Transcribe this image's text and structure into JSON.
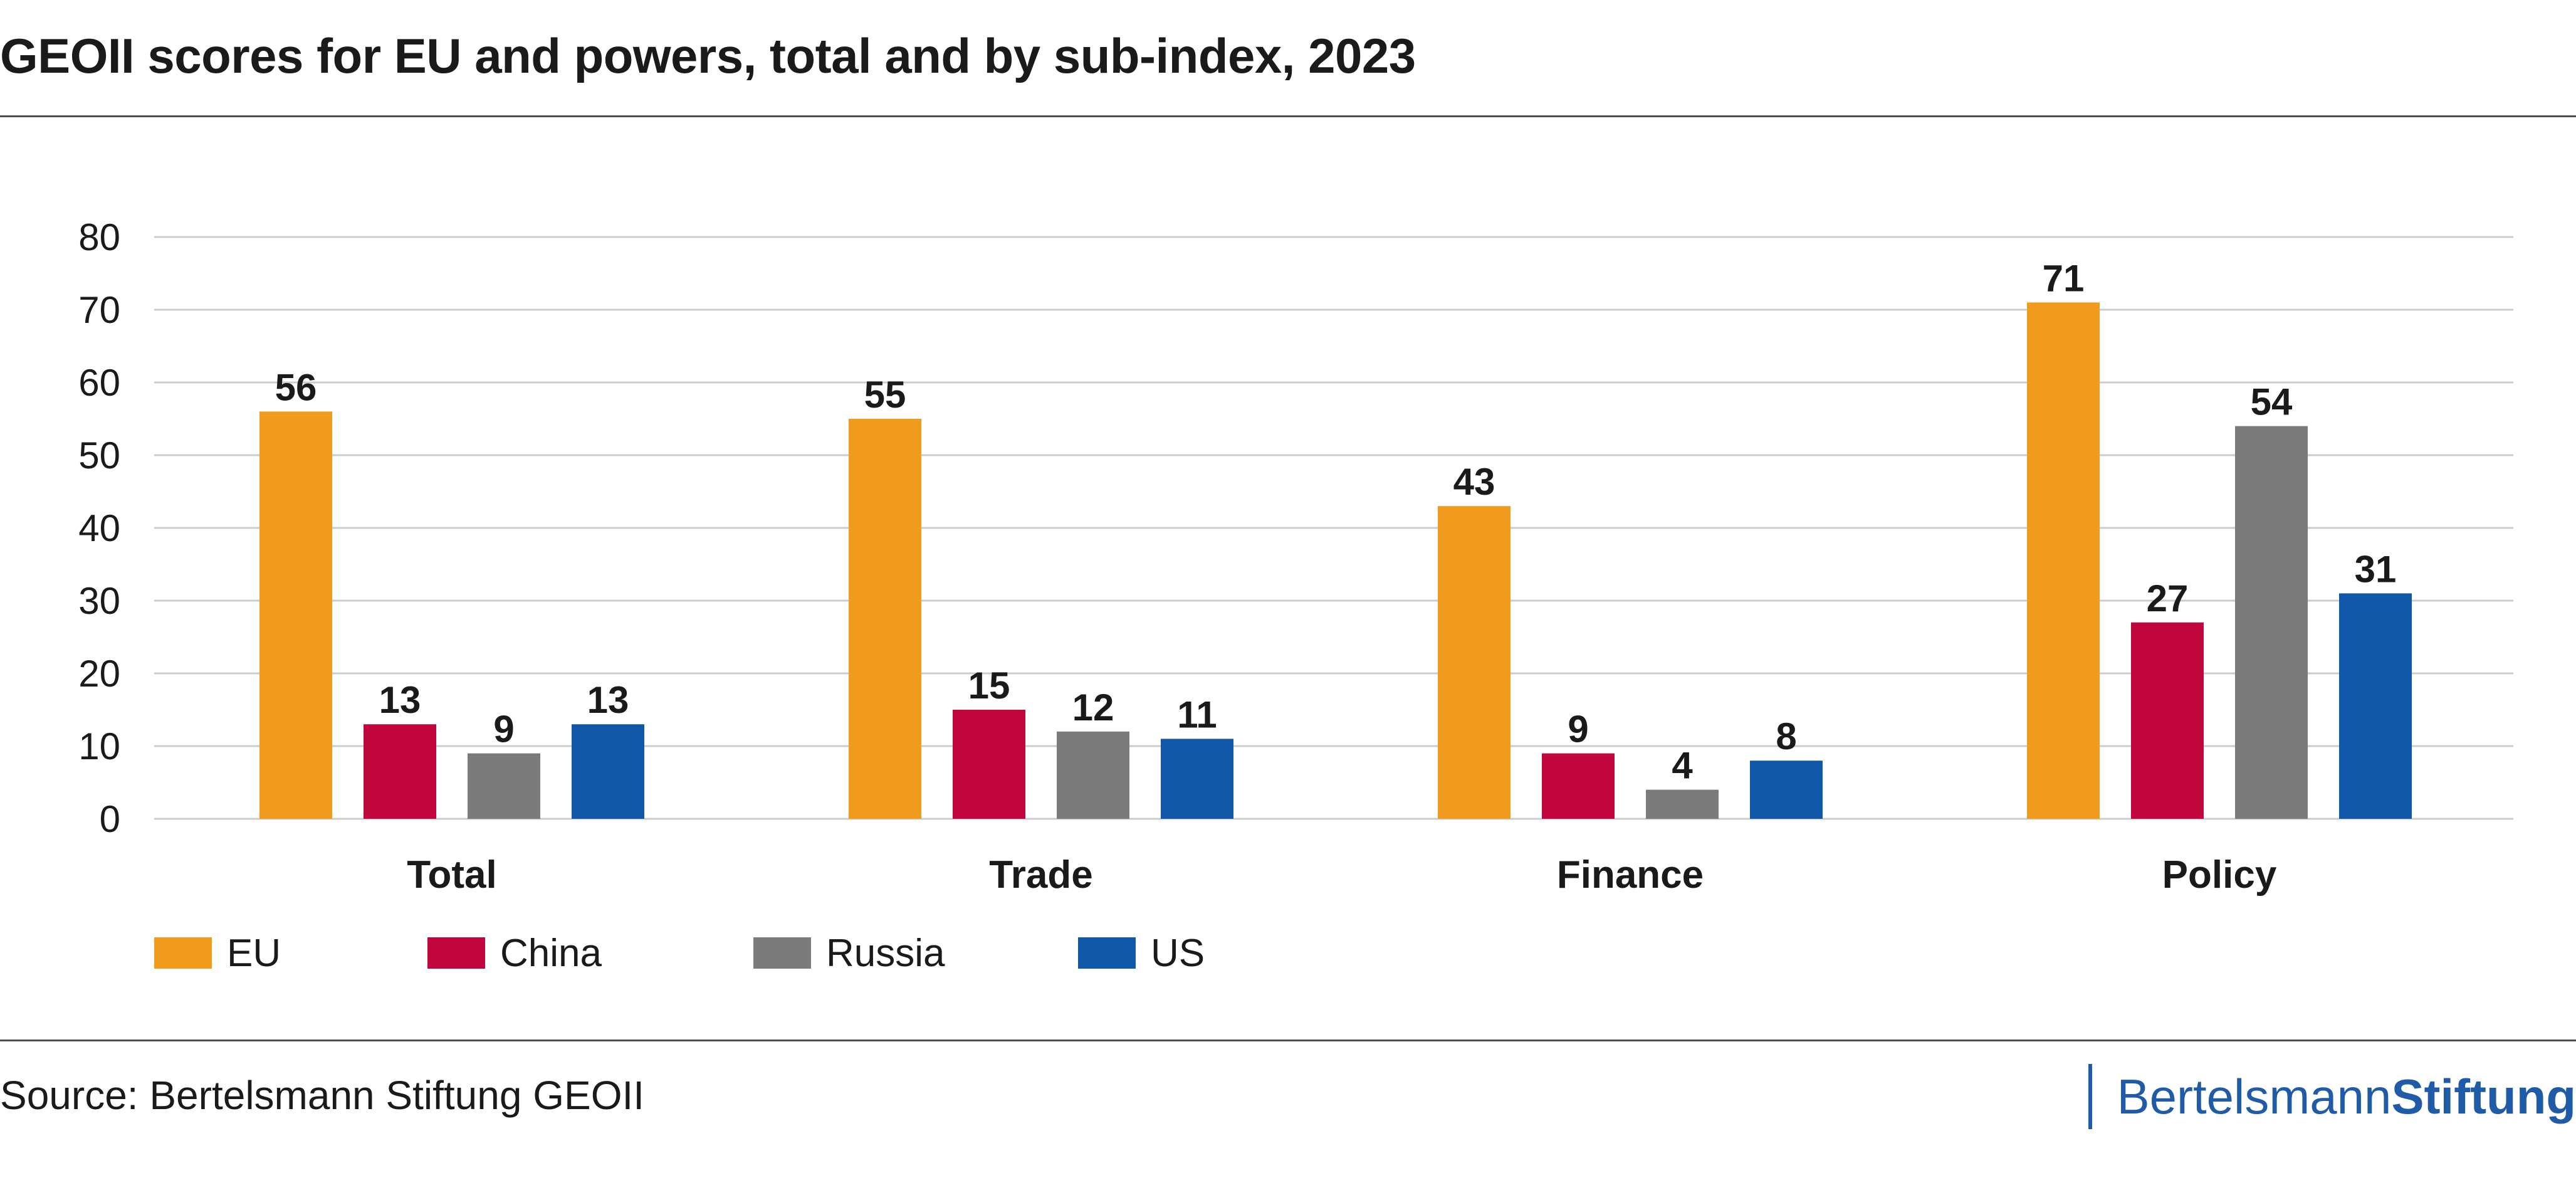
{
  "header": {
    "title": "GEOII scores for EU and powers, total and by sub-index, 2023"
  },
  "footer": {
    "source": "Source: Bertelsmann Stiftung GEOII",
    "brand_regular": "Bertelsmann",
    "brand_bold": "Stiftung",
    "brand_color": "#1f5ba6"
  },
  "chart_data": {
    "type": "bar",
    "title": "GEOII scores for EU and powers, total and by sub-index, 2023",
    "xlabel": "",
    "ylabel": "",
    "ylim": [
      0,
      80
    ],
    "yticks": [
      0,
      10,
      20,
      30,
      40,
      50,
      60,
      70,
      80
    ],
    "grid": true,
    "legend_position": "bottom-left",
    "categories": [
      "Total",
      "Trade",
      "Finance",
      "Policy"
    ],
    "series": [
      {
        "name": "EU",
        "color": "#f09a1e",
        "values": [
          56,
          55,
          43,
          71
        ]
      },
      {
        "name": "China",
        "color": "#c0063c",
        "values": [
          13,
          15,
          9,
          27
        ]
      },
      {
        "name": "Russia",
        "color": "#7a7a7a",
        "values": [
          9,
          12,
          4,
          54
        ]
      },
      {
        "name": "US",
        "color": "#1157a8",
        "values": [
          13,
          11,
          8,
          31
        ]
      }
    ]
  }
}
